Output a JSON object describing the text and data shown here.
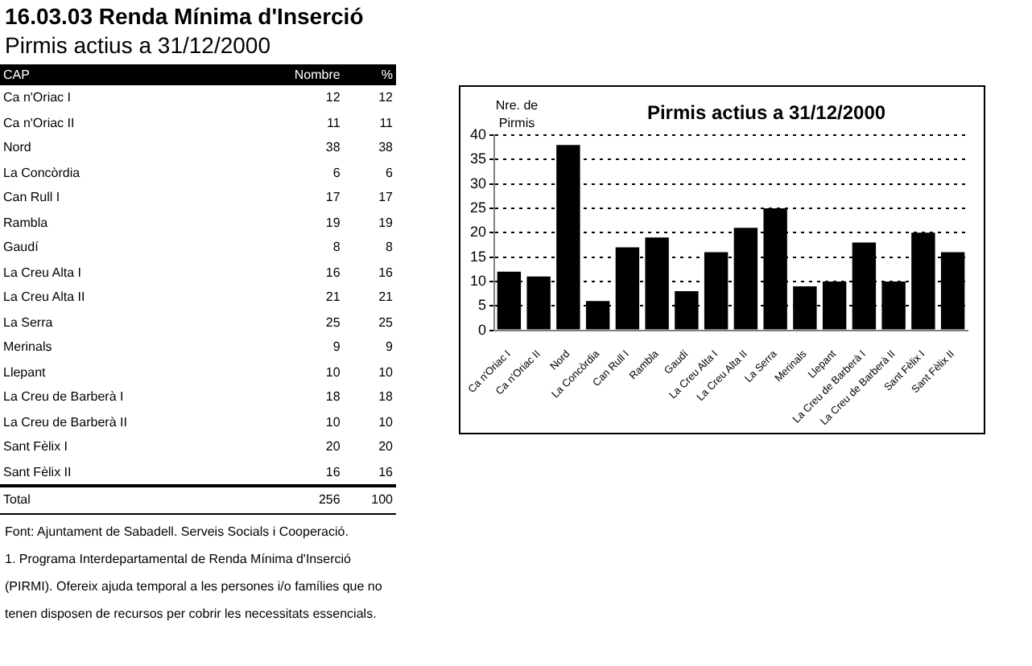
{
  "chart_data": [
    {
      "type": "other",
      "title": "16.03.03 Renda Mínima d'Inserció",
      "subtitle": "Pirmis actius a 31/12/2000",
      "xlabel": "CAP",
      "categories": [
        "Ca n'Oriac I",
        "Ca n'Oriac II",
        "Nord",
        "La Concòrdia",
        "Can Rull I",
        "Rambla",
        "Gaudí",
        "La Creu Alta I",
        "La Creu Alta II",
        "La Serra",
        "Merinals",
        "Llepant",
        "La Creu de Barberà I",
        "La Creu de Barberà II",
        "Sant Fèlix I",
        "Sant Fèlix II"
      ],
      "series": [
        {
          "name": "Nombre",
          "values": [
            12,
            11,
            38,
            6,
            17,
            19,
            8,
            16,
            21,
            25,
            9,
            10,
            18,
            10,
            20,
            16
          ]
        },
        {
          "name": "%",
          "values": [
            12,
            11,
            38,
            6,
            17,
            19,
            8,
            16,
            21,
            25,
            9,
            10,
            18,
            10,
            20,
            16
          ]
        }
      ],
      "data_labels": true,
      "totals": [
        "256",
        "100"
      ],
      "annotations": [
        "Total",
        "Font: Ajuntament de Sabadell. Serveis Socials i Cooperació.",
        "1. Programa Interdepartamental de Renda Mínima d'Inserció (PIRMI). Ofereix ajuda temporal a les persones i/o famílies que no tenen disposen de recursos per cobrir les necessitats essencials."
      ]
    },
    {
      "type": "bar",
      "title": "Pirmis actius a 31/12/2000",
      "ylabel": "Nre. de Pirmis",
      "categories": [
        "Ca n'Oriac I",
        "Ca n'Oriac II",
        "Nord",
        "La Concòrdia",
        "Can Rull I",
        "Rambla",
        "Gaudí",
        "La Creu Alta I",
        "La Creu Alta II",
        "La Serra",
        "Merinals",
        "Llepant",
        "La Creu de Barberà I",
        "La Creu de Barberà II",
        "Sant Fèlix I",
        "Sant Fèlix II"
      ],
      "values": [
        12,
        11,
        38,
        6,
        17,
        19,
        8,
        16,
        21,
        25,
        9,
        10,
        18,
        10,
        20,
        16
      ],
      "color": "#000000",
      "ylim": [
        0,
        40
      ],
      "yticks": [
        0,
        5,
        10,
        15,
        20,
        25,
        30,
        35,
        40
      ],
      "grid": "y"
    }
  ]
}
